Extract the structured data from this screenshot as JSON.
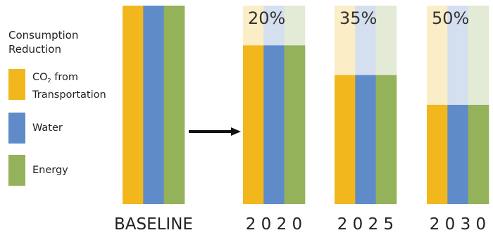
{
  "chart_data": {
    "type": "bar",
    "stacked": true,
    "legend_title": [
      "Consumption",
      "Reduction"
    ],
    "series": [
      {
        "name_parts": [
          "CO",
          "2",
          " from",
          "Transportation"
        ],
        "color": "#F2B71D",
        "faded_color": "#FBEDC6"
      },
      {
        "name": "Water",
        "color": "#5F8BC8",
        "faded_color": "#D4DFEF"
      },
      {
        "name": "Energy",
        "color": "#93B25A",
        "faded_color": "#E3EBD6"
      }
    ],
    "categories": [
      "BASELINE",
      "2 0 2 0",
      "2 0 2 5",
      "2 0 3 0"
    ],
    "reduction_labels": [
      "",
      "20%",
      "35%",
      "50%"
    ],
    "remaining_fraction": [
      1.0,
      0.8,
      0.65,
      0.5
    ],
    "ylim": [
      0,
      1
    ]
  }
}
